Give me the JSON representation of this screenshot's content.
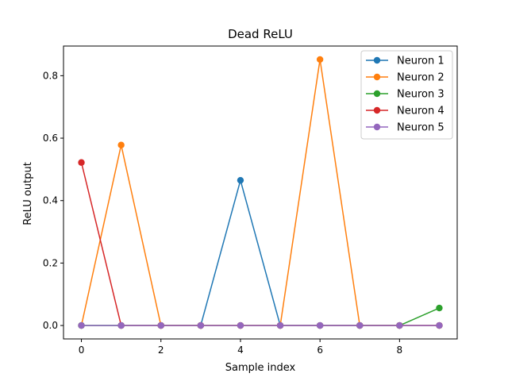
{
  "chart_data": {
    "type": "line",
    "title": "Dead ReLU",
    "xlabel": "Sample index",
    "ylabel": "ReLU output",
    "xlim": [
      -0.45,
      9.45
    ],
    "ylim": [
      -0.043,
      0.895
    ],
    "xticks": [
      0,
      2,
      4,
      6,
      8
    ],
    "xtick_labels": [
      "0",
      "2",
      "4",
      "6",
      "8"
    ],
    "yticks": [
      0.0,
      0.2,
      0.4,
      0.6,
      0.8
    ],
    "ytick_labels": [
      "0.0",
      "0.2",
      "0.4",
      "0.6",
      "0.8"
    ],
    "grid": false,
    "legend_position": "top-right",
    "x": [
      0,
      1,
      2,
      3,
      4,
      5,
      6,
      7,
      8,
      9
    ],
    "series": [
      {
        "name": "Neuron 1",
        "color": "#1f77b4",
        "values": [
          0,
          0,
          0,
          0,
          0.465,
          0,
          0,
          0,
          0,
          0
        ]
      },
      {
        "name": "Neuron 2",
        "color": "#ff7f0e",
        "values": [
          0,
          0.578,
          0,
          0,
          0,
          0,
          0.852,
          0,
          0,
          0
        ]
      },
      {
        "name": "Neuron 3",
        "color": "#2ca02c",
        "values": [
          0,
          0,
          0,
          0,
          0,
          0,
          0,
          0,
          0,
          0.056
        ]
      },
      {
        "name": "Neuron 4",
        "color": "#d62728",
        "values": [
          0.522,
          0,
          0,
          0,
          0,
          0,
          0,
          0,
          0,
          0
        ]
      },
      {
        "name": "Neuron 5",
        "color": "#9467bd",
        "values": [
          0,
          0,
          0,
          0,
          0,
          0,
          0,
          0,
          0,
          0
        ]
      }
    ]
  }
}
